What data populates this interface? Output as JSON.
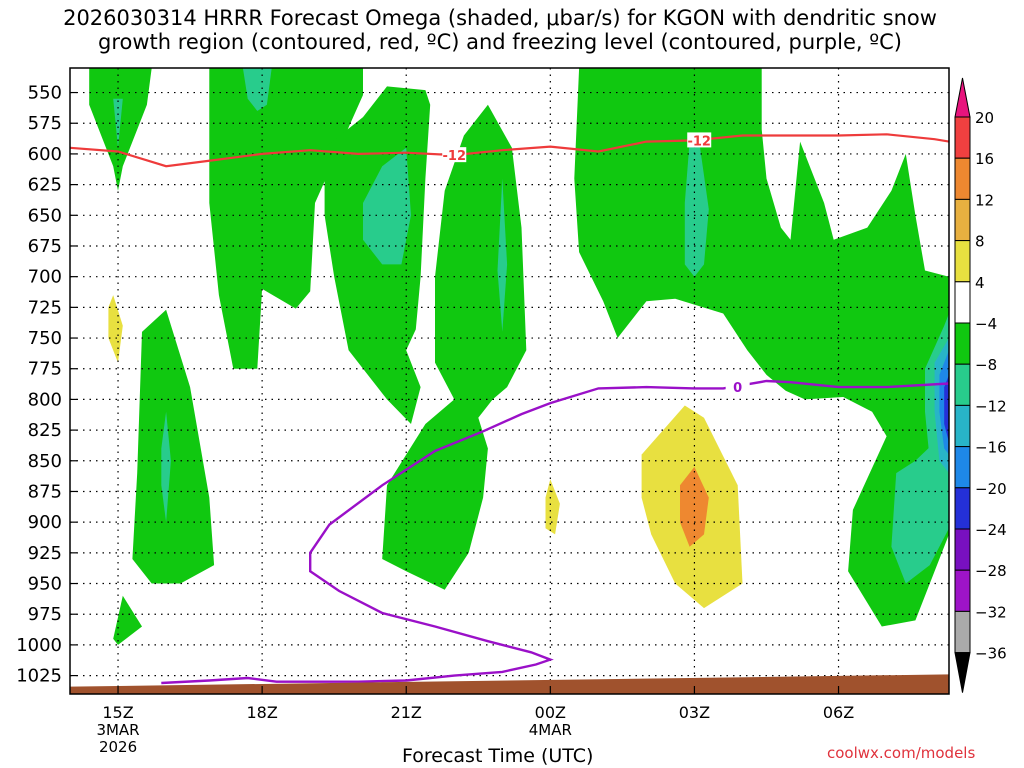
{
  "title": {
    "line1": "2026030314 HRRR Forecast Omega (shaded, μbar/s) for KGON with dendritic snow",
    "line2": "growth region (contoured, red, ºC) and freezing level (contoured, purple, ºC)"
  },
  "credit": "coolwx.com/models",
  "chart_data": {
    "type": "contour",
    "title": "2026030314 HRRR Forecast Omega (shaded, μbar/s) for KGON with dendritic snow growth region (contoured, red, ºC) and freezing level (contoured, purple, ºC)",
    "xlabel": "Forecast Time (UTC)",
    "ylabel": "",
    "y_ticks": [
      "550",
      "575",
      "600",
      "625",
      "650",
      "675",
      "700",
      "725",
      "750",
      "775",
      "800",
      "825",
      "850",
      "875",
      "900",
      "925",
      "950",
      "975",
      "1000",
      "1025"
    ],
    "x_ticks": [
      {
        "label": "15Z",
        "sub1": "3MAR",
        "sub2": "2026",
        "hour": 15
      },
      {
        "label": "18Z",
        "sub1": "",
        "sub2": "",
        "hour": 18
      },
      {
        "label": "21Z",
        "sub1": "",
        "sub2": "",
        "hour": 21
      },
      {
        "label": "00Z",
        "sub1": "4MAR",
        "sub2": "",
        "hour": 24
      },
      {
        "label": "03Z",
        "sub1": "",
        "sub2": "",
        "hour": 27
      },
      {
        "label": "06Z",
        "sub1": "",
        "sub2": "",
        "hour": 30
      }
    ],
    "x_range_hours": [
      14,
      32.3
    ],
    "y_range_hpa": [
      530,
      1040
    ],
    "colorbar": {
      "labels": [
        "20",
        "16",
        "12",
        "8",
        "4",
        "−4",
        "−8",
        "−12",
        "−16",
        "−20",
        "−24",
        "−28",
        "−32",
        "−36"
      ],
      "colors": [
        "#e8147d",
        "#f04040",
        "#ee8830",
        "#e8b040",
        "#e8e040",
        "#ffffff",
        "#10c810",
        "#28cc8c",
        "#28b4c8",
        "#1e88e8",
        "#2430d8",
        "#7810c0",
        "#9e14c8",
        "#aaaaaa",
        "#000000"
      ]
    },
    "contour_labels": {
      "dgz_upper": "-12",
      "dgz_lower": "-12",
      "freezing": "0"
    },
    "dgz_line": [
      [
        14,
        595
      ],
      [
        15,
        598
      ],
      [
        16,
        610
      ],
      [
        17,
        605
      ],
      [
        18,
        600
      ],
      [
        19,
        597
      ],
      [
        20,
        600
      ],
      [
        21,
        599
      ],
      [
        22,
        601
      ],
      [
        23,
        597
      ],
      [
        24,
        594
      ],
      [
        25,
        598
      ],
      [
        26,
        590
      ],
      [
        27,
        589
      ],
      [
        28,
        585
      ],
      [
        29,
        585
      ],
      [
        30,
        585
      ],
      [
        31,
        584
      ],
      [
        32,
        588
      ],
      [
        32.3,
        590
      ]
    ],
    "freezing_line": [
      [
        15.9,
        1031
      ],
      [
        16.9,
        1029
      ],
      [
        17.7,
        1027
      ],
      [
        18.3,
        1030
      ],
      [
        19,
        1030
      ],
      [
        20,
        1030
      ],
      [
        21,
        1029
      ],
      [
        22,
        1025
      ],
      [
        23,
        1022
      ],
      [
        23.7,
        1016
      ],
      [
        24,
        1012
      ],
      [
        23.6,
        1006
      ],
      [
        22.7,
        997
      ],
      [
        21.6,
        985
      ],
      [
        20.5,
        974
      ],
      [
        19.6,
        956
      ],
      [
        19,
        940
      ],
      [
        19,
        925
      ],
      [
        19.4,
        902
      ],
      [
        20.5,
        870
      ],
      [
        21.6,
        842
      ],
      [
        22.6,
        826
      ],
      [
        23.4,
        812
      ],
      [
        24,
        803
      ],
      [
        25,
        791
      ],
      [
        26,
        790
      ],
      [
        27,
        791
      ],
      [
        27.6,
        791
      ],
      [
        28.5,
        785
      ],
      [
        29,
        786
      ],
      [
        30,
        790
      ],
      [
        31,
        790
      ],
      [
        32.3,
        787
      ]
    ],
    "shaded_regions": [
      {
        "value": -6,
        "name": "green-a",
        "polygon": [
          [
            14.4,
            530
          ],
          [
            15.7,
            530
          ],
          [
            15.6,
            560
          ],
          [
            15.1,
            610
          ],
          [
            15,
            630
          ],
          [
            14.9,
            610
          ],
          [
            14.4,
            560
          ]
        ]
      },
      {
        "value": -10,
        "name": "teal-a1",
        "polygon": [
          [
            14.9,
            555
          ],
          [
            15,
            595
          ],
          [
            15.1,
            555
          ]
        ]
      },
      {
        "value": -6,
        "name": "green-b",
        "polygon": [
          [
            16.9,
            530
          ],
          [
            20.1,
            530
          ],
          [
            20.1,
            552
          ],
          [
            19.1,
            640
          ],
          [
            19,
            712
          ],
          [
            18.7,
            726
          ],
          [
            18,
            710
          ],
          [
            17.9,
            775
          ],
          [
            17.4,
            775
          ],
          [
            17.1,
            715
          ],
          [
            16.9,
            640
          ]
        ]
      },
      {
        "value": -10,
        "name": "teal-b1",
        "polygon": [
          [
            17.6,
            530
          ],
          [
            18.2,
            530
          ],
          [
            18.1,
            560
          ],
          [
            17.9,
            565
          ],
          [
            17.7,
            555
          ]
        ]
      },
      {
        "value": -6,
        "name": "green-c",
        "polygon": [
          [
            19.3,
            595
          ],
          [
            20.1,
            570
          ],
          [
            20.6,
            545
          ],
          [
            21.4,
            548
          ],
          [
            21.5,
            560
          ],
          [
            21.4,
            620
          ],
          [
            21.3,
            700
          ],
          [
            21.2,
            743
          ],
          [
            21,
            760
          ],
          [
            21.3,
            790
          ],
          [
            21.1,
            820
          ],
          [
            20.6,
            800
          ],
          [
            19.8,
            760
          ],
          [
            19.5,
            700
          ],
          [
            19.3,
            650
          ]
        ]
      },
      {
        "value": -10,
        "name": "teal-c1",
        "polygon": [
          [
            20.1,
            640
          ],
          [
            20.5,
            610
          ],
          [
            21,
            595
          ],
          [
            21.1,
            650
          ],
          [
            20.9,
            690
          ],
          [
            20.5,
            690
          ],
          [
            20.1,
            670
          ]
        ]
      },
      {
        "value": -6,
        "name": "green-d",
        "polygon": [
          [
            15.5,
            745
          ],
          [
            16,
            727
          ],
          [
            16.5,
            790
          ],
          [
            16.9,
            880
          ],
          [
            17,
            935
          ],
          [
            16.3,
            950
          ],
          [
            15.7,
            950
          ],
          [
            15.3,
            930
          ],
          [
            15.4,
            860
          ]
        ]
      },
      {
        "value": -10,
        "name": "teal-d1",
        "polygon": [
          [
            15.9,
            840
          ],
          [
            16,
            810
          ],
          [
            16.1,
            850
          ],
          [
            16,
            900
          ],
          [
            15.9,
            870
          ]
        ]
      },
      {
        "value": -6,
        "name": "green-e",
        "polygon": [
          [
            21.6,
            700
          ],
          [
            21.8,
            630
          ],
          [
            22.2,
            585
          ],
          [
            22.7,
            560
          ],
          [
            23.2,
            595
          ],
          [
            23.4,
            660
          ],
          [
            23.5,
            760
          ],
          [
            23.1,
            790
          ],
          [
            22.8,
            800
          ],
          [
            22.5,
            815
          ],
          [
            22.7,
            840
          ],
          [
            22.6,
            880
          ],
          [
            22.3,
            925
          ],
          [
            21.8,
            955
          ],
          [
            21,
            940
          ],
          [
            20.5,
            930
          ],
          [
            20.6,
            870
          ],
          [
            21.4,
            820
          ],
          [
            22,
            800
          ],
          [
            21.6,
            770
          ]
        ]
      },
      {
        "value": -10,
        "name": "teal-e1",
        "polygon": [
          [
            22.9,
            695
          ],
          [
            23,
            620
          ],
          [
            23.1,
            690
          ],
          [
            23,
            745
          ]
        ]
      },
      {
        "value": -6,
        "name": "green-f",
        "polygon": [
          [
            24.6,
            530
          ],
          [
            28.4,
            530
          ],
          [
            28.4,
            580
          ],
          [
            28.5,
            620
          ],
          [
            28.8,
            660
          ],
          [
            29,
            670
          ],
          [
            29.2,
            590
          ],
          [
            29.7,
            640
          ],
          [
            29.9,
            670
          ],
          [
            30.6,
            660
          ],
          [
            31.1,
            630
          ],
          [
            31.4,
            600
          ],
          [
            31.6,
            650
          ],
          [
            31.8,
            695
          ],
          [
            32.3,
            700
          ],
          [
            32.3,
            910
          ],
          [
            31.6,
            980
          ],
          [
            30.9,
            985
          ],
          [
            30.2,
            940
          ],
          [
            30.3,
            890
          ],
          [
            31,
            830
          ],
          [
            30.7,
            810
          ],
          [
            30.1,
            798
          ],
          [
            29.3,
            800
          ],
          [
            28.9,
            793
          ],
          [
            28.5,
            780
          ],
          [
            28.1,
            760
          ],
          [
            27.6,
            730
          ],
          [
            26.6,
            718
          ],
          [
            26,
            720
          ],
          [
            25.4,
            750
          ],
          [
            25.1,
            720
          ],
          [
            24.6,
            680
          ],
          [
            24.5,
            620
          ]
        ]
      },
      {
        "value": -10,
        "name": "teal-f1",
        "polygon": [
          [
            26.8,
            640
          ],
          [
            26.9,
            590
          ],
          [
            27.1,
            590
          ],
          [
            27.3,
            645
          ],
          [
            27.2,
            690
          ],
          [
            27,
            700
          ],
          [
            26.8,
            690
          ]
        ]
      },
      {
        "value": -6,
        "name": "green-g",
        "polygon": [
          [
            14.9,
            995
          ],
          [
            15.1,
            960
          ],
          [
            15.5,
            985
          ],
          [
            15,
            1000
          ]
        ]
      },
      {
        "value": -10,
        "name": "teal-g1",
        "polygon": [
          [
            31.2,
            860
          ],
          [
            31.6,
            850
          ],
          [
            32,
            835
          ],
          [
            32.3,
            840
          ],
          [
            32.3,
            905
          ],
          [
            31.9,
            935
          ],
          [
            31.4,
            950
          ],
          [
            31.1,
            920
          ]
        ]
      },
      {
        "value": -10,
        "name": "teal-g2",
        "polygon": [
          [
            31.8,
            775
          ],
          [
            32.2,
            740
          ],
          [
            32.3,
            730
          ],
          [
            32.3,
            820
          ],
          [
            31.9,
            850
          ],
          [
            31.8,
            810
          ]
        ]
      },
      {
        "value": -14,
        "name": "cyan-g3",
        "polygon": [
          [
            32.0,
            770
          ],
          [
            32.3,
            750
          ],
          [
            32.3,
            860
          ],
          [
            32.1,
            850
          ],
          [
            32,
            810
          ]
        ]
      },
      {
        "value": -18,
        "name": "blue-g4",
        "polygon": [
          [
            32.1,
            780
          ],
          [
            32.3,
            760
          ],
          [
            32.3,
            845
          ],
          [
            32.2,
            840
          ],
          [
            32.1,
            810
          ]
        ]
      },
      {
        "value": -22,
        "name": "navy-g5",
        "polygon": [
          [
            32.2,
            790
          ],
          [
            32.3,
            780
          ],
          [
            32.3,
            835
          ],
          [
            32.2,
            820
          ]
        ]
      },
      {
        "value": 6,
        "name": "yellow-a",
        "polygon": [
          [
            14.8,
            725
          ],
          [
            14.9,
            715
          ],
          [
            15.1,
            740
          ],
          [
            15,
            770
          ],
          [
            14.8,
            750
          ]
        ]
      },
      {
        "value": 6,
        "name": "yellow-b",
        "polygon": [
          [
            23.9,
            880
          ],
          [
            24,
            865
          ],
          [
            24.2,
            885
          ],
          [
            24.1,
            910
          ],
          [
            23.9,
            905
          ]
        ]
      },
      {
        "value": 6,
        "name": "yellow-c",
        "polygon": [
          [
            25.9,
            845
          ],
          [
            26.8,
            805
          ],
          [
            27.2,
            815
          ],
          [
            27.9,
            870
          ],
          [
            28.0,
            950
          ],
          [
            27.2,
            970
          ],
          [
            26.6,
            950
          ],
          [
            26.1,
            910
          ],
          [
            25.9,
            880
          ]
        ]
      },
      {
        "value": 10,
        "name": "orange-c1",
        "polygon": [
          [
            26.7,
            870
          ],
          [
            27,
            855
          ],
          [
            27.3,
            880
          ],
          [
            27.2,
            910
          ],
          [
            26.9,
            920
          ],
          [
            26.7,
            900
          ]
        ]
      }
    ],
    "terrain": {
      "color": "#a0522d",
      "label": "surface"
    }
  }
}
